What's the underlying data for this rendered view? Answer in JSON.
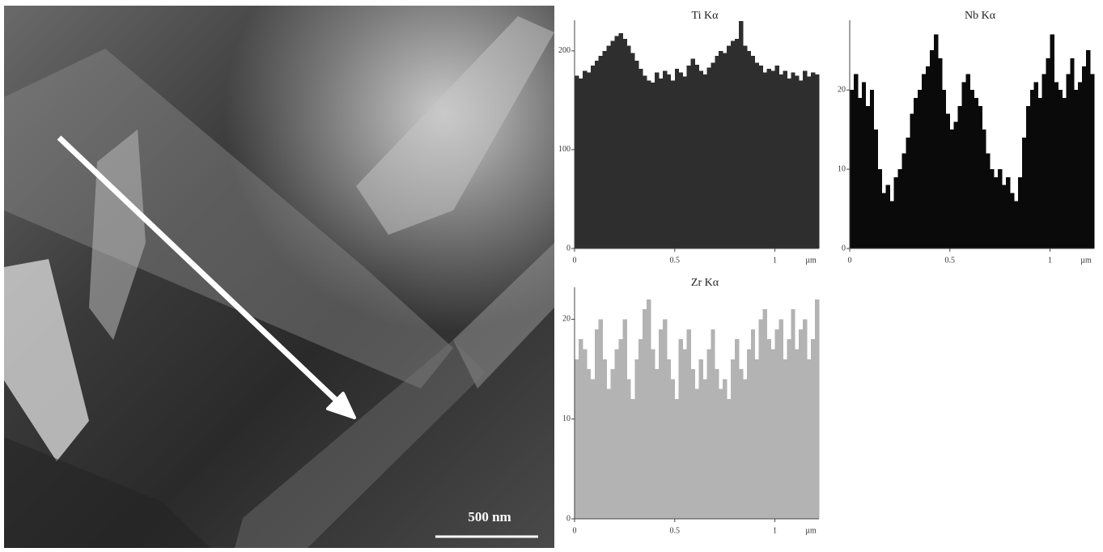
{
  "image": {
    "scale_bar": "500 nm"
  },
  "chart_data": [
    {
      "type": "histogram",
      "title": "Ti Kα",
      "xlabel": "µm",
      "color": "#2e2e2e",
      "bins": [
        0,
        0.02,
        0.04,
        0.06,
        0.08,
        0.1,
        0.12,
        0.14,
        0.16,
        0.18,
        0.2,
        0.22,
        0.24,
        0.26,
        0.28,
        0.3,
        0.32,
        0.34,
        0.36,
        0.38,
        0.4,
        0.42,
        0.44,
        0.46,
        0.48,
        0.5,
        0.52,
        0.54,
        0.56,
        0.58,
        0.6,
        0.62,
        0.64,
        0.66,
        0.68,
        0.7,
        0.72,
        0.74,
        0.76,
        0.78,
        0.8,
        0.82,
        0.84,
        0.86,
        0.88,
        0.9,
        0.92,
        0.94,
        0.96,
        0.98,
        1,
        1.02,
        1.04,
        1.06,
        1.08,
        1.1,
        1.12,
        1.14,
        1.16,
        1.18,
        1.2,
        1.22
      ],
      "values": [
        175,
        172,
        180,
        178,
        185,
        190,
        195,
        200,
        205,
        210,
        215,
        218,
        212,
        205,
        198,
        190,
        182,
        175,
        170,
        168,
        178,
        172,
        180,
        176,
        170,
        182,
        178,
        174,
        185,
        192,
        186,
        180,
        176,
        183,
        188,
        195,
        200,
        198,
        205,
        210,
        212,
        230,
        205,
        200,
        195,
        188,
        185,
        178,
        182,
        180,
        185,
        176,
        180,
        172,
        178,
        175,
        170,
        180,
        174,
        178,
        176
      ],
      "xlim": [
        0,
        1.22
      ],
      "xticks": [
        0,
        0.5,
        1
      ],
      "ylim": [
        0,
        231
      ],
      "yticks": [
        0,
        100,
        200
      ]
    },
    {
      "type": "histogram",
      "title": "Nb Kα",
      "xlabel": "µm",
      "color": "#0a0a0a",
      "bins": [
        0,
        0.02,
        0.04,
        0.06,
        0.08,
        0.1,
        0.12,
        0.14,
        0.16,
        0.18,
        0.2,
        0.22,
        0.24,
        0.26,
        0.28,
        0.3,
        0.32,
        0.34,
        0.36,
        0.38,
        0.4,
        0.42,
        0.44,
        0.46,
        0.48,
        0.5,
        0.52,
        0.54,
        0.56,
        0.58,
        0.6,
        0.62,
        0.64,
        0.66,
        0.68,
        0.7,
        0.72,
        0.74,
        0.76,
        0.78,
        0.8,
        0.82,
        0.84,
        0.86,
        0.88,
        0.9,
        0.92,
        0.94,
        0.96,
        0.98,
        1,
        1.02,
        1.04,
        1.06,
        1.08,
        1.1,
        1.12,
        1.14,
        1.16,
        1.18,
        1.2,
        1.22
      ],
      "values": [
        20,
        22,
        19,
        21,
        18,
        20,
        15,
        10,
        7,
        8,
        6,
        9,
        10,
        12,
        14,
        17,
        19,
        20,
        22,
        23,
        25,
        27,
        24,
        20,
        17,
        15,
        16,
        18,
        21,
        22,
        20,
        19,
        18,
        15,
        12,
        10,
        9,
        10,
        8,
        9,
        7,
        6,
        9,
        14,
        18,
        20,
        21,
        19,
        22,
        24,
        27,
        21,
        20,
        19,
        22,
        24,
        20,
        21,
        23,
        25,
        22
      ],
      "xlim": [
        0,
        1.22
      ],
      "xticks": [
        0,
        0.5,
        1
      ],
      "ylim": [
        0,
        28.8
      ],
      "yticks": [
        0,
        10,
        20
      ]
    },
    {
      "type": "histogram",
      "title": "Zr Kα",
      "xlabel": "µm",
      "color": "#b3b3b3",
      "bins": [
        0,
        0.02,
        0.04,
        0.06,
        0.08,
        0.1,
        0.12,
        0.14,
        0.16,
        0.18,
        0.2,
        0.22,
        0.24,
        0.26,
        0.28,
        0.3,
        0.32,
        0.34,
        0.36,
        0.38,
        0.4,
        0.42,
        0.44,
        0.46,
        0.48,
        0.5,
        0.52,
        0.54,
        0.56,
        0.58,
        0.6,
        0.62,
        0.64,
        0.66,
        0.68,
        0.7,
        0.72,
        0.74,
        0.76,
        0.78,
        0.8,
        0.82,
        0.84,
        0.86,
        0.88,
        0.9,
        0.92,
        0.94,
        0.96,
        0.98,
        1,
        1.02,
        1.04,
        1.06,
        1.08,
        1.1,
        1.12,
        1.14,
        1.16,
        1.18,
        1.2,
        1.22
      ],
      "values": [
        16,
        18,
        17,
        15,
        14,
        19,
        20,
        16,
        13,
        15,
        17,
        18,
        20,
        14,
        12,
        16,
        18,
        21,
        22,
        17,
        15,
        19,
        20,
        16,
        14,
        12,
        18,
        17,
        19,
        15,
        13,
        16,
        14,
        17,
        19,
        15,
        13,
        14,
        12,
        16,
        18,
        15,
        14,
        17,
        19,
        16,
        20,
        21,
        18,
        17,
        19,
        20,
        16,
        18,
        21,
        17,
        19,
        20,
        16,
        18,
        22
      ],
      "xlim": [
        0,
        1.22
      ],
      "xticks": [
        0,
        0.5,
        1
      ],
      "ylim": [
        0,
        23.2
      ],
      "yticks": [
        0,
        10,
        20
      ]
    }
  ]
}
